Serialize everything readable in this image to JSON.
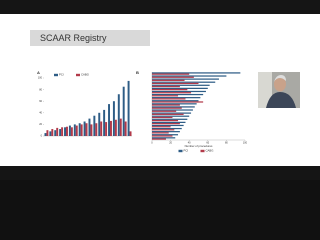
{
  "header": {
    "title": "SCAAR Registry"
  },
  "chart_data": [
    {
      "type": "bar",
      "orientation": "vertical",
      "panel": "A",
      "legend": "top-left",
      "categories": [
        null,
        null,
        null,
        null,
        null,
        null,
        null,
        null,
        null,
        null,
        null,
        null,
        null,
        null,
        null,
        null,
        null,
        null
      ],
      "series": [
        {
          "name": "PCI",
          "color": "#2e5d86",
          "values": [
            5,
            8,
            10,
            12,
            15,
            18,
            20,
            22,
            25,
            30,
            35,
            40,
            45,
            55,
            60,
            72,
            85,
            95
          ]
        },
        {
          "name": "CABG",
          "color": "#b23a4a",
          "values": [
            10,
            12,
            14,
            15,
            16,
            15,
            18,
            20,
            22,
            20,
            22,
            25,
            24,
            26,
            28,
            30,
            25,
            8
          ]
        }
      ],
      "ylim": [
        0,
        100
      ],
      "yticks": [
        0,
        20,
        40,
        60,
        80,
        100
      ]
    },
    {
      "type": "bar",
      "orientation": "horizontal",
      "panel": "B",
      "legend": "bottom",
      "xlabel": "Number of procedures",
      "categories": [
        null,
        null,
        null,
        null,
        null,
        null,
        null,
        null,
        null,
        null,
        null,
        null,
        null,
        null,
        null,
        null,
        null,
        null,
        null,
        null,
        null,
        null
      ],
      "series": [
        {
          "name": "PCI",
          "color": "#2e5d86",
          "values": [
            95,
            80,
            72,
            68,
            62,
            60,
            58,
            55,
            52,
            50,
            48,
            46,
            44,
            42,
            40,
            38,
            36,
            34,
            32,
            30,
            28,
            25
          ]
        },
        {
          "name": "CABG",
          "color": "#b23a4a",
          "values": [
            40,
            45,
            35,
            50,
            30,
            38,
            42,
            28,
            36,
            55,
            30,
            32,
            26,
            34,
            22,
            28,
            30,
            20,
            24,
            18,
            22,
            15
          ]
        }
      ],
      "xlim": [
        0,
        100
      ],
      "xticks": [
        0,
        20,
        40,
        60,
        80,
        100
      ]
    }
  ]
}
